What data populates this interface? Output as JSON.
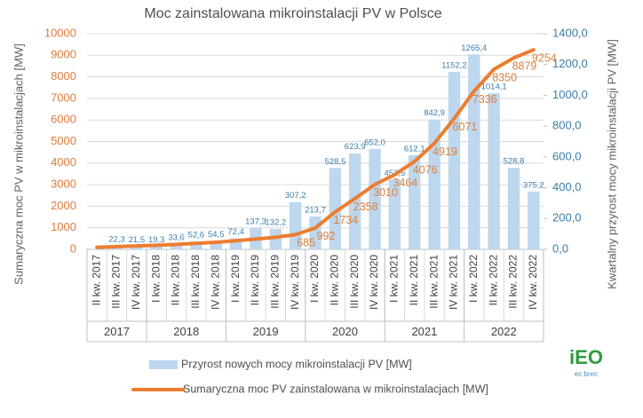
{
  "chart_data": {
    "type": "bar-line",
    "title": "Moc zainstalowana mikroinstalacji PV w Polsce",
    "y_label": "Sumaryczna moc PV w mikroinstalacjach [MW]",
    "y2_label": "Kwartalny przyrost mocy mikroinstalacji PV [MW]",
    "categories": [
      "II kw. 2017",
      "III kw. 2017",
      "IV kw. 2017",
      "I kw. 2018",
      "II kw. 2018",
      "III kw. 2018",
      "IV kw. 2018",
      "I kw. 2019",
      "II kw. 2019",
      "III kw. 2019",
      "IV kw. 2019",
      "I kw. 2020",
      "II kw. 2020",
      "III kw. 2020",
      "IV kw. 2020",
      "I kw. 2021",
      "II kw. 2021",
      "III kw. 2021",
      "IV kw. 2021",
      "I kw. 2022",
      "II kw. 2022",
      "III kw. 2022",
      "IV kw. 2022"
    ],
    "year_groups": [
      {
        "label": "2017",
        "count": 3
      },
      {
        "label": "2018",
        "count": 4
      },
      {
        "label": "2019",
        "count": 4
      },
      {
        "label": "2020",
        "count": 4
      },
      {
        "label": "2021",
        "count": 4
      },
      {
        "label": "2022",
        "count": 4
      }
    ],
    "series": [
      {
        "name": "Przyrost nowych mocy mikroinstalacji PV [MW]",
        "kind": "bar",
        "axis": "y2",
        "color": "#bdd7ee",
        "label_color": "#3b7dab",
        "values": [
          null,
          22.3,
          21.5,
          19.3,
          33.6,
          52.6,
          54.5,
          72.4,
          137.3,
          132.2,
          307.2,
          213.7,
          528.5,
          623.9,
          652.0,
          453.5,
          612.1,
          842.9,
          1152.2,
          1265.4,
          1014.1,
          528.8,
          375.2
        ],
        "value_labels": [
          null,
          "22,3",
          "21,5",
          "19,3",
          "33,6",
          "52,6",
          "54,5",
          "72,4",
          "137,3",
          "132,2",
          "307,2",
          "213,7",
          "528,5",
          "623,9",
          "652,0",
          "453,5",
          "612,1",
          "842,9",
          "1152,2",
          "1265,4",
          "1014,1",
          "528,8",
          "375,2"
        ]
      },
      {
        "name": "Sumaryczna moc PV zainstalowana w mikroinstalacjach [MW]",
        "kind": "line",
        "axis": "y",
        "color": "#ed7d31",
        "label_color": "#d9823f",
        "values": [
          100,
          130,
          160,
          190,
          230,
          280,
          330,
          400,
          480,
          560,
          685,
          992,
          1734,
          2358,
          3010,
          3464,
          4076,
          4919,
          6071,
          7336,
          8350,
          8879,
          9254
        ],
        "value_labels": [
          null,
          null,
          null,
          null,
          null,
          null,
          null,
          null,
          null,
          null,
          "685",
          "992",
          "1734",
          "2358",
          "3010",
          "3464",
          "4076",
          "4919",
          "6071",
          "7336",
          "8350",
          "8879",
          "9254"
        ]
      }
    ],
    "ylim": [
      0,
      10000
    ],
    "yticks": [
      0,
      1000,
      2000,
      3000,
      4000,
      5000,
      6000,
      7000,
      8000,
      9000,
      10000
    ],
    "y2lim": [
      0,
      1400
    ],
    "y2ticks": [
      {
        "value": 0,
        "label": "0,0"
      },
      {
        "value": 200,
        "label": "200,0"
      },
      {
        "value": 400,
        "label": "400,0"
      },
      {
        "value": 600,
        "label": "600,0"
      },
      {
        "value": 800,
        "label": "800,0"
      },
      {
        "value": 1000,
        "label": "1000,0"
      },
      {
        "value": 1200,
        "label": "1200,0"
      },
      {
        "value": 1400,
        "label": "1400,0"
      }
    ],
    "grid": true,
    "logo": {
      "text": "iEO",
      "subtitle": "ec brec"
    }
  }
}
